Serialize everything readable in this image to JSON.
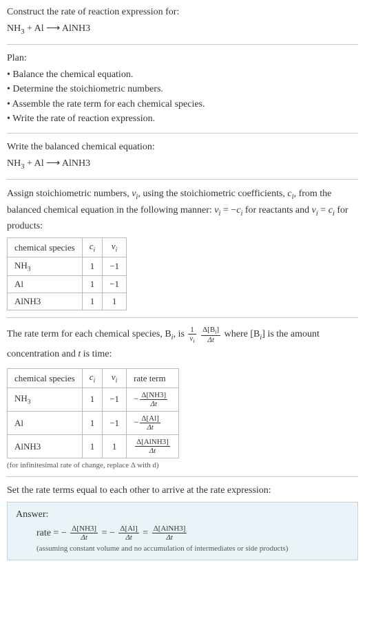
{
  "header": {
    "prompt": "Construct the rate of reaction expression for:",
    "equation_lhs1": "NH",
    "equation_lhs1_sub": "3",
    "equation_plus": " + Al ⟶ AlNH3"
  },
  "plan": {
    "title": "Plan:",
    "b1": "• Balance the chemical equation.",
    "b2": "• Determine the stoichiometric numbers.",
    "b3": "• Assemble the rate term for each chemical species.",
    "b4": "• Write the rate of reaction expression."
  },
  "balanced": {
    "title": "Write the balanced chemical equation:",
    "eq_lhs1": "NH",
    "eq_lhs1_sub": "3",
    "eq_rest": " + Al ⟶ AlNH3"
  },
  "stoich": {
    "intro1": "Assign stoichiometric numbers, ",
    "nu": "ν",
    "sub_i": "i",
    "intro2": ", using the stoichiometric coefficients, ",
    "c": "c",
    "intro3": ", from the balanced chemical equation in the following manner: ",
    "rel1_pre": "ν",
    "rel1_eq": " = −",
    "rel1_c": "c",
    "rel1_post": " for reactants and ",
    "rel2_pre": "ν",
    "rel2_eq": " = ",
    "rel2_c": "c",
    "rel2_post": " for products:",
    "head_species": "chemical species",
    "head_c": "c",
    "head_nu": "ν",
    "r1s": "NH",
    "r1s_sub": "3",
    "r1c": "1",
    "r1n": "−1",
    "r2s": "Al",
    "r2c": "1",
    "r2n": "−1",
    "r3s": "AlNH3",
    "r3c": "1",
    "r3n": "1"
  },
  "rateterm": {
    "intro1": "The rate term for each chemical species, B",
    "intro2": ", is ",
    "frac1_num": "1",
    "frac1_den_pre": "ν",
    "frac2_num_pre": "Δ[B",
    "frac2_num_post": "]",
    "frac2_den": "Δt",
    "intro3": " where [B",
    "intro4": "] is the amount concentration and ",
    "t": "t",
    "intro5": " is time:",
    "head_species": "chemical species",
    "head_c": "c",
    "head_nu": "ν",
    "head_rate": "rate term",
    "r1s": "NH",
    "r1s_sub": "3",
    "r1c": "1",
    "r1n": "−1",
    "r1_rnum": "Δ[NH3]",
    "r1_rden": "Δt",
    "r1_sign": "−",
    "r2s": "Al",
    "r2c": "1",
    "r2n": "−1",
    "r2_rnum": "Δ[Al]",
    "r2_rden": "Δt",
    "r2_sign": "−",
    "r3s": "AlNH3",
    "r3c": "1",
    "r3n": "1",
    "r3_rnum": "Δ[AlNH3]",
    "r3_rden": "Δt",
    "r3_sign": "",
    "note": "(for infinitesimal rate of change, replace Δ with d)"
  },
  "final": {
    "title": "Set the rate terms equal to each other to arrive at the rate expression:",
    "answer_label": "Answer:",
    "rate_label": "rate = −",
    "t1_num": "Δ[NH3]",
    "t1_den": "Δt",
    "eq1": " = −",
    "t2_num": "Δ[Al]",
    "t2_den": "Δt",
    "eq2": " = ",
    "t3_num": "Δ[AlNH3]",
    "t3_den": "Δt",
    "note": "(assuming constant volume and no accumulation of intermediates or side products)"
  },
  "colors": {
    "answer_bg": "#e8f4f8",
    "answer_border": "#b8d8e0",
    "sep": "#cccccc",
    "table_border": "#bbbbbb"
  }
}
